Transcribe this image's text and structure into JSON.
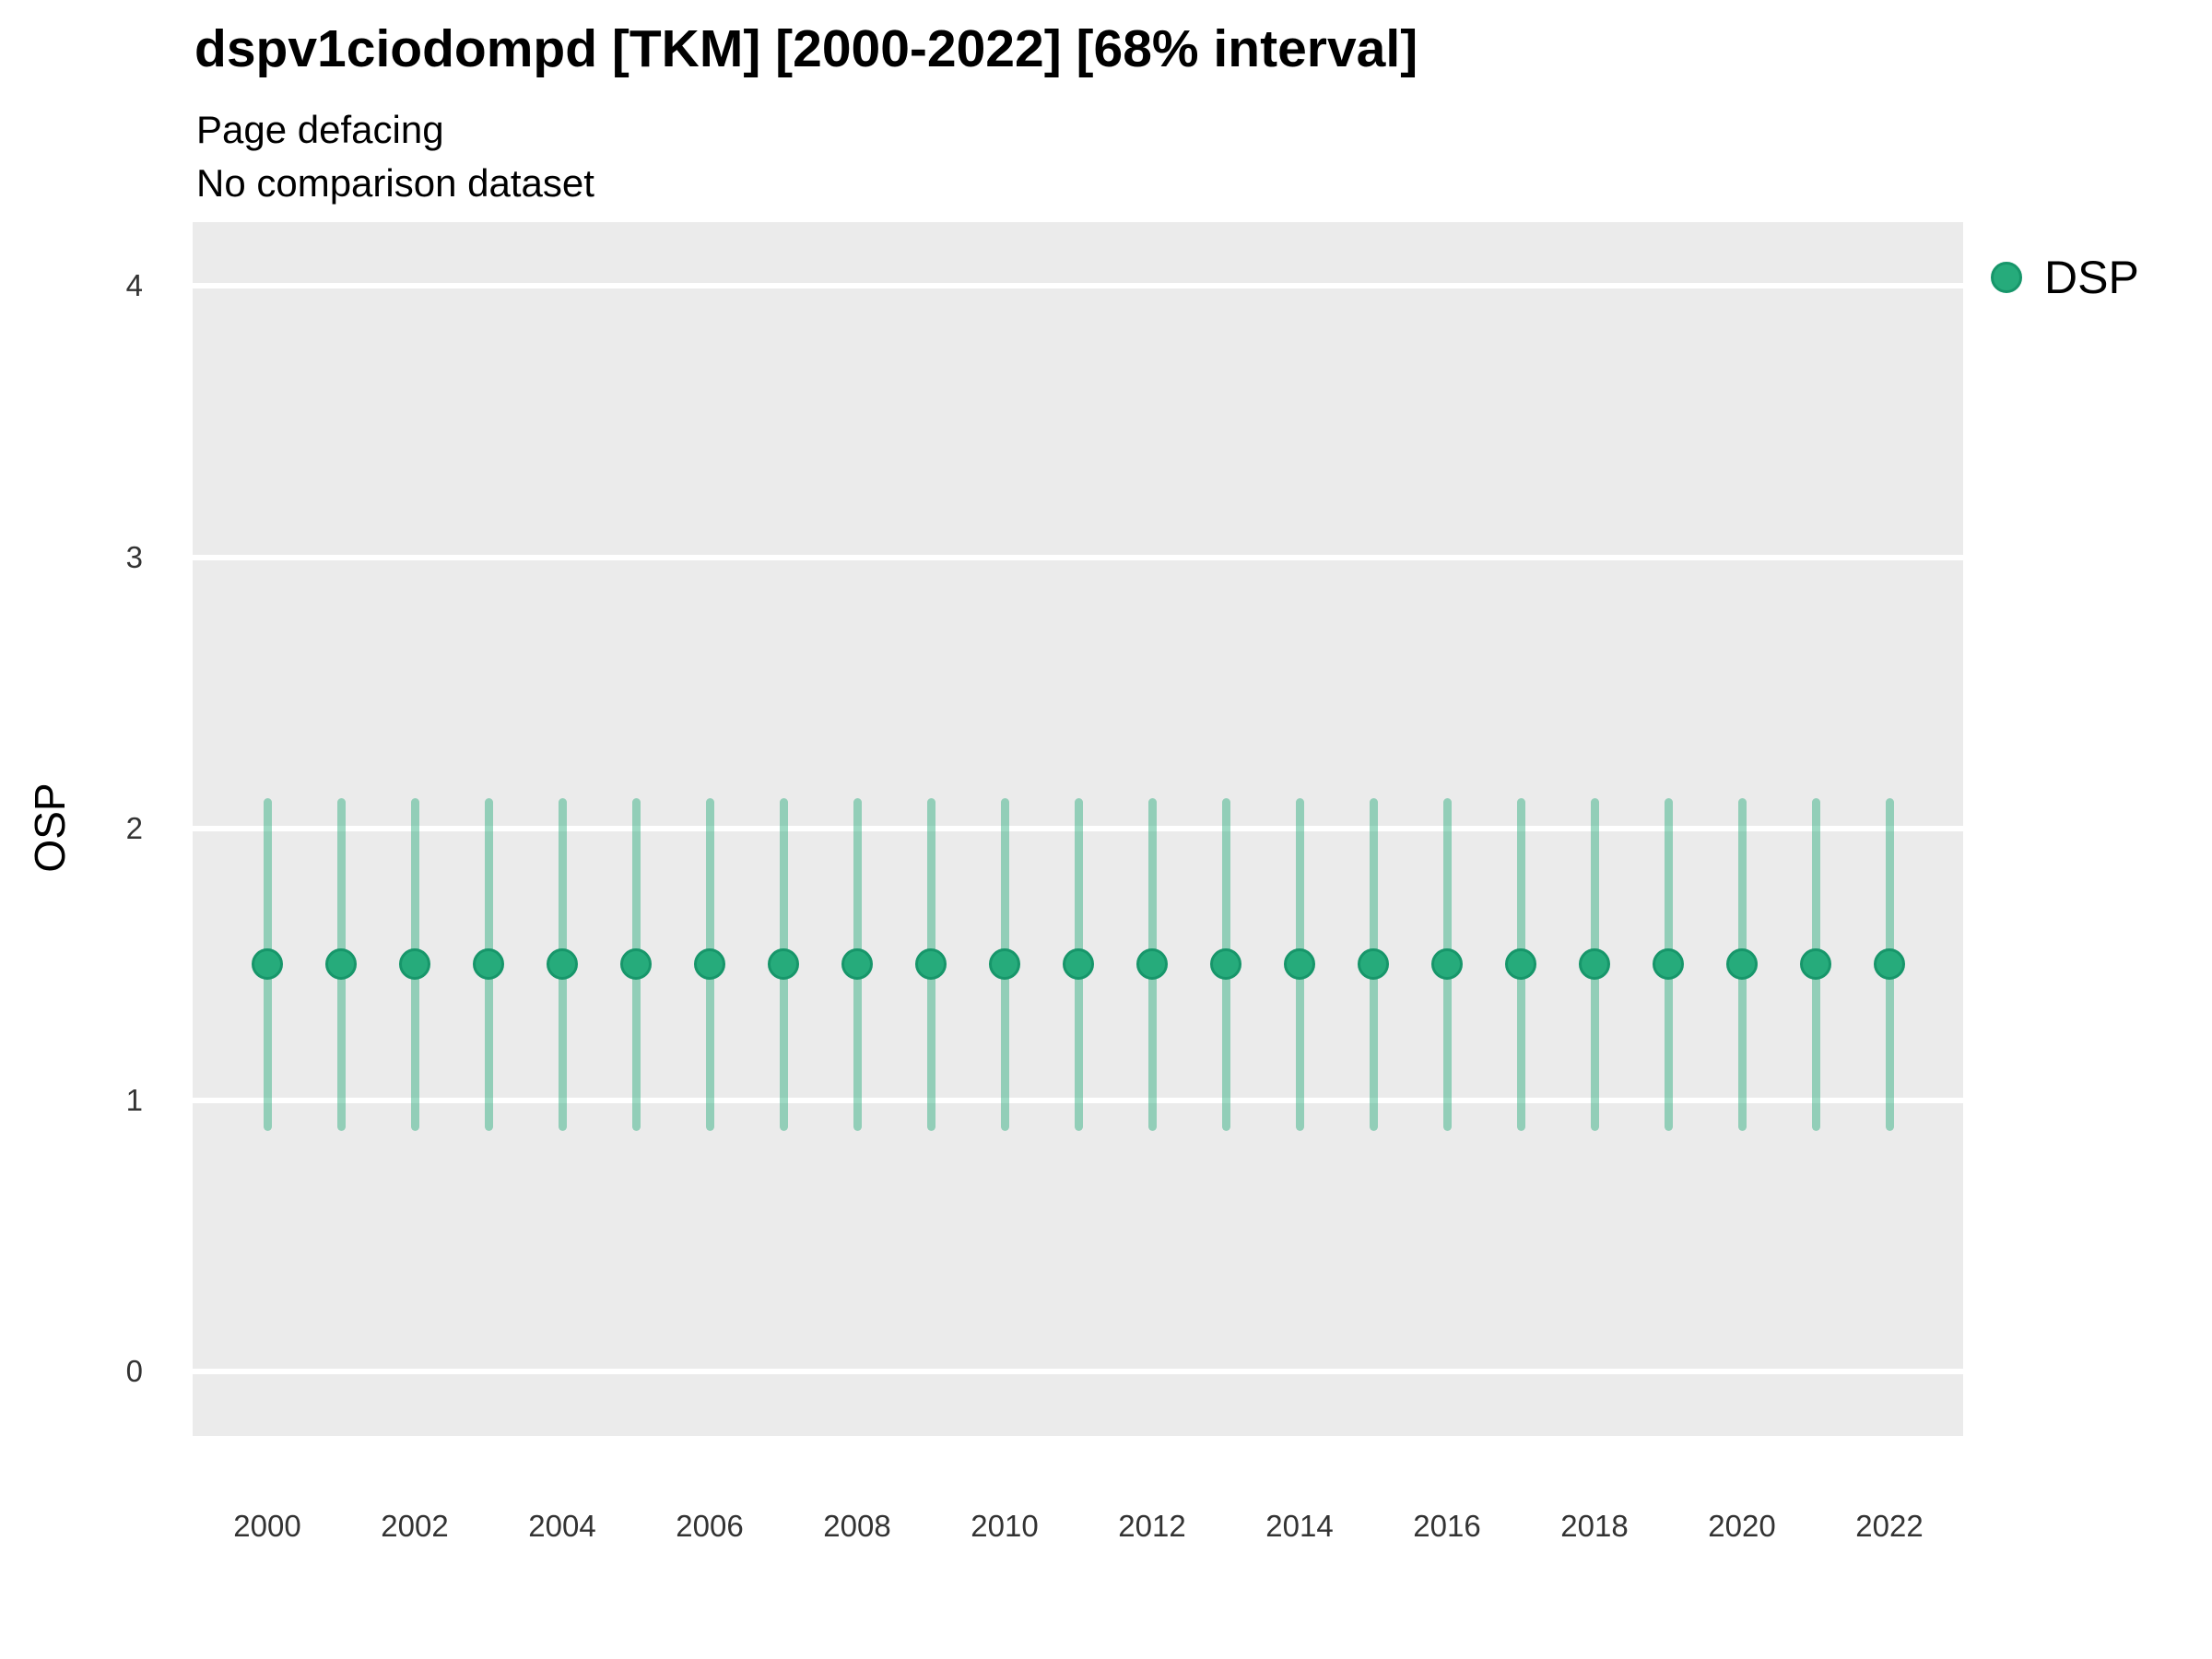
{
  "title": "dspv1ciodompd [TKM] [2000-2022] [68% interval]",
  "subtitle": "Page defacing",
  "note": "No comparison dataset",
  "y_axis_title": "OSP",
  "legend": {
    "position": "right",
    "items": [
      {
        "label": "DSP",
        "color": "#26AB7B",
        "stroke": "#17966A"
      }
    ]
  },
  "chart_data": {
    "type": "scatter",
    "title": "dspv1ciodompd [TKM] [2000-2022] [68% interval]",
    "subtitle": "Page defacing",
    "note": "No comparison dataset",
    "interval": "68%",
    "xlabel": "",
    "ylabel": "OSP",
    "x": [
      2000,
      2001,
      2002,
      2003,
      2004,
      2005,
      2006,
      2007,
      2008,
      2009,
      2010,
      2011,
      2012,
      2013,
      2014,
      2015,
      2016,
      2017,
      2018,
      2019,
      2020,
      2021,
      2022
    ],
    "series": [
      {
        "name": "DSP",
        "estimate": [
          1.5,
          1.5,
          1.5,
          1.5,
          1.5,
          1.5,
          1.5,
          1.5,
          1.5,
          1.5,
          1.5,
          1.5,
          1.5,
          1.5,
          1.5,
          1.5,
          1.5,
          1.5,
          1.5,
          1.5,
          1.5,
          1.5,
          1.5
        ],
        "lower": [
          0.9,
          0.9,
          0.9,
          0.9,
          0.9,
          0.9,
          0.9,
          0.9,
          0.9,
          0.9,
          0.9,
          0.9,
          0.9,
          0.9,
          0.9,
          0.9,
          0.9,
          0.9,
          0.9,
          0.9,
          0.9,
          0.9,
          0.9
        ],
        "upper": [
          2.1,
          2.1,
          2.1,
          2.1,
          2.1,
          2.1,
          2.1,
          2.1,
          2.1,
          2.1,
          2.1,
          2.1,
          2.1,
          2.1,
          2.1,
          2.1,
          2.1,
          2.1,
          2.1,
          2.1,
          2.1,
          2.1,
          2.1
        ]
      }
    ],
    "yticks": [
      0,
      1,
      2,
      3,
      4
    ],
    "xticks": [
      2000,
      2002,
      2004,
      2006,
      2008,
      2010,
      2012,
      2014,
      2016,
      2018,
      2020,
      2022
    ],
    "ylim": [
      -0.24,
      4.23
    ],
    "grid": "horizontal-major-only",
    "legend_position": "right",
    "colors": {
      "point_fill": "#26AB7B",
      "point_stroke": "#17966A",
      "interval_line": "rgba(38, 171, 123, 0.45)",
      "panel_bg": "#EBEBEB",
      "gridline": "#FFFFFF",
      "tick_text": "#333333"
    }
  }
}
